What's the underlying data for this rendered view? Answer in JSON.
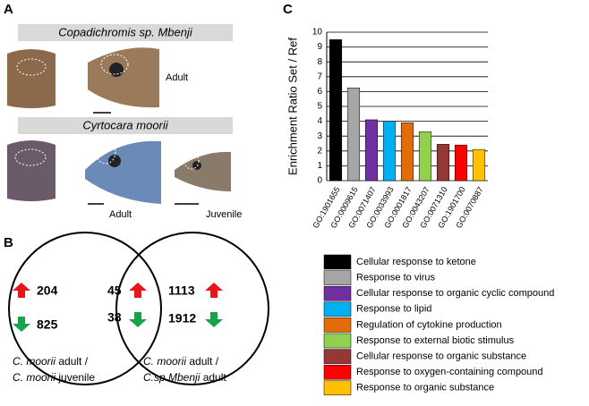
{
  "panel_labels": [
    "A",
    "B",
    "C"
  ],
  "panel_a": {
    "species_1": "Copadichromis sp. Mbenji",
    "species_1_stage": "Adult",
    "species_2": "Cyrtocara moorii",
    "species_2_stages": [
      "Adult",
      "Juvenile"
    ]
  },
  "panel_b": {
    "left_up": "204",
    "left_down": "825",
    "shared_up": "45",
    "shared_down": "38",
    "right_up": "1113",
    "right_down": "1912",
    "left_caption": [
      {
        "species": "C. moorii",
        "rest": "adult /"
      },
      {
        "species": "C. moorii",
        "rest": "juvenile"
      }
    ],
    "right_caption": [
      {
        "species": "C. moorii",
        "rest": "adult /"
      },
      {
        "species": "C.sp Mbenji",
        "rest": "adult"
      }
    ]
  },
  "chart_data": {
    "type": "bar",
    "y_label": "Enrichment  Ratio  Set / Ref",
    "categories": [
      "GO:1901655",
      "GO:0009615",
      "GO:0071407",
      "GO:0033993",
      "GO:0001817",
      "GO:0043207",
      "GO:0071310",
      "GO:1901700",
      "GO:0070887"
    ],
    "values": [
      9.5,
      6.25,
      4.1,
      4.0,
      3.9,
      3.3,
      2.45,
      2.4,
      2.1
    ],
    "colors": [
      "#000000",
      "#a6a6a6",
      "#7030a0",
      "#00b0f0",
      "#e36c09",
      "#92d050",
      "#953735",
      "#ff0000",
      "#ffc000"
    ],
    "legend": [
      "Cellular response to ketone",
      "Response to virus",
      "Cellular response to organic cyclic compound",
      "Response to lipid",
      "Regulation of cytokine production",
      "Response to external biotic stimulus",
      "Cellular response to organic substance",
      "Response to oxygen-containing compound",
      "Response to organic substance"
    ],
    "ylim": [
      0,
      10
    ],
    "yticks": [
      0,
      1,
      2,
      3,
      4,
      5,
      6,
      7,
      8,
      9,
      10
    ],
    "grid": true
  }
}
